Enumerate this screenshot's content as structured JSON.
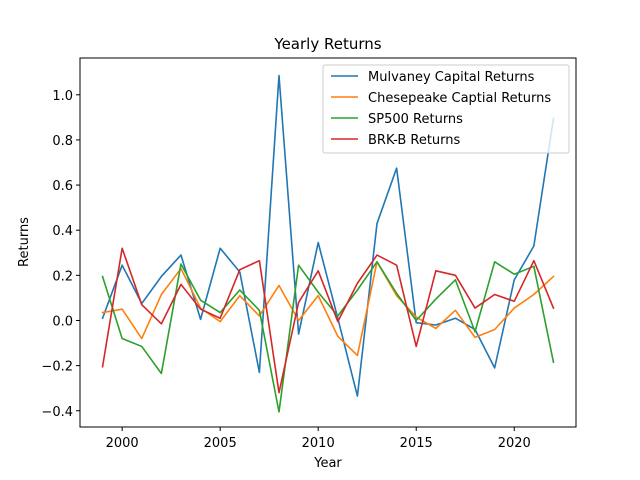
{
  "chart_data": {
    "type": "line",
    "title": "Yearly Returns",
    "xlabel": "Year",
    "ylabel": "Returns",
    "xlim": [
      1997.85,
      2023.15
    ],
    "ylim": [
      -0.472,
      1.163
    ],
    "xticks": [
      2000,
      2005,
      2010,
      2015,
      2020
    ],
    "yticks": [
      -0.4,
      -0.2,
      0.0,
      0.2,
      0.4,
      0.6,
      0.8,
      1.0
    ],
    "ytick_labels": [
      "−0.4",
      "−0.2",
      "0.0",
      "0.2",
      "0.4",
      "0.6",
      "0.8",
      "1.0"
    ],
    "grid": false,
    "legend_position": "top-right",
    "x": [
      1999,
      2000,
      2001,
      2002,
      2003,
      2004,
      2005,
      2006,
      2007,
      2008,
      2009,
      2010,
      2011,
      2012,
      2013,
      2014,
      2015,
      2016,
      2017,
      2018,
      2019,
      2020,
      2021,
      2022
    ],
    "series": [
      {
        "name": "Mulvaney Capital Returns",
        "color": "#1f77b4",
        "values": [
          0.01,
          0.245,
          0.075,
          0.195,
          0.29,
          0.005,
          0.32,
          0.215,
          -0.23,
          1.085,
          -0.06,
          0.345,
          0.01,
          -0.335,
          0.43,
          0.675,
          -0.01,
          -0.02,
          0.01,
          -0.04,
          -0.21,
          0.18,
          0.33,
          0.895
        ]
      },
      {
        "name": "Chesepeake Captial Returns",
        "color": "#ff7f0e",
        "values": [
          0.035,
          0.05,
          -0.08,
          0.115,
          0.23,
          0.055,
          -0.005,
          0.11,
          0.02,
          0.155,
          0.0,
          0.11,
          -0.07,
          -0.155,
          0.26,
          0.11,
          0.015,
          -0.035,
          0.045,
          -0.075,
          -0.04,
          0.055,
          0.115,
          0.195
        ]
      },
      {
        "name": "SP500 Returns",
        "color": "#2ca02c",
        "values": [
          0.195,
          -0.08,
          -0.115,
          -0.235,
          0.25,
          0.09,
          0.035,
          0.135,
          0.045,
          -0.405,
          0.245,
          0.125,
          0.02,
          0.135,
          0.26,
          0.12,
          0.0,
          0.095,
          0.18,
          -0.05,
          0.26,
          0.205,
          0.24,
          -0.185
        ]
      },
      {
        "name": "BRK-B Returns",
        "color": "#d62728",
        "values": [
          -0.205,
          0.32,
          0.07,
          -0.015,
          0.16,
          0.05,
          0.01,
          0.225,
          0.265,
          -0.32,
          0.08,
          0.22,
          -0.005,
          0.165,
          0.29,
          0.245,
          -0.115,
          0.22,
          0.2,
          0.055,
          0.115,
          0.085,
          0.265,
          0.055
        ]
      }
    ]
  }
}
